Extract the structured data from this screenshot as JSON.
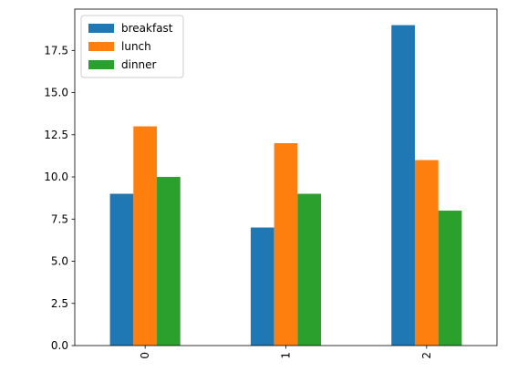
{
  "chart_data": {
    "type": "bar",
    "title": "",
    "xlabel": "",
    "ylabel": "",
    "categories": [
      "0",
      "1",
      "2"
    ],
    "series": [
      {
        "name": "breakfast",
        "color": "#1f77b4",
        "values": [
          9,
          7,
          19
        ]
      },
      {
        "name": "lunch",
        "color": "#ff7f0e",
        "values": [
          13,
          12,
          11
        ]
      },
      {
        "name": "dinner",
        "color": "#2ca02c",
        "values": [
          10,
          9,
          8
        ]
      }
    ],
    "ylim": [
      0,
      19.95
    ],
    "yticks": [
      0.0,
      2.5,
      5.0,
      7.5,
      10.0,
      12.5,
      15.0,
      17.5
    ],
    "ytick_labels": [
      "0.0",
      "2.5",
      "5.0",
      "7.5",
      "10.0",
      "12.5",
      "15.0",
      "17.5"
    ],
    "xtick_rotation": "vertical",
    "grid": false,
    "legend": "upper-left"
  }
}
